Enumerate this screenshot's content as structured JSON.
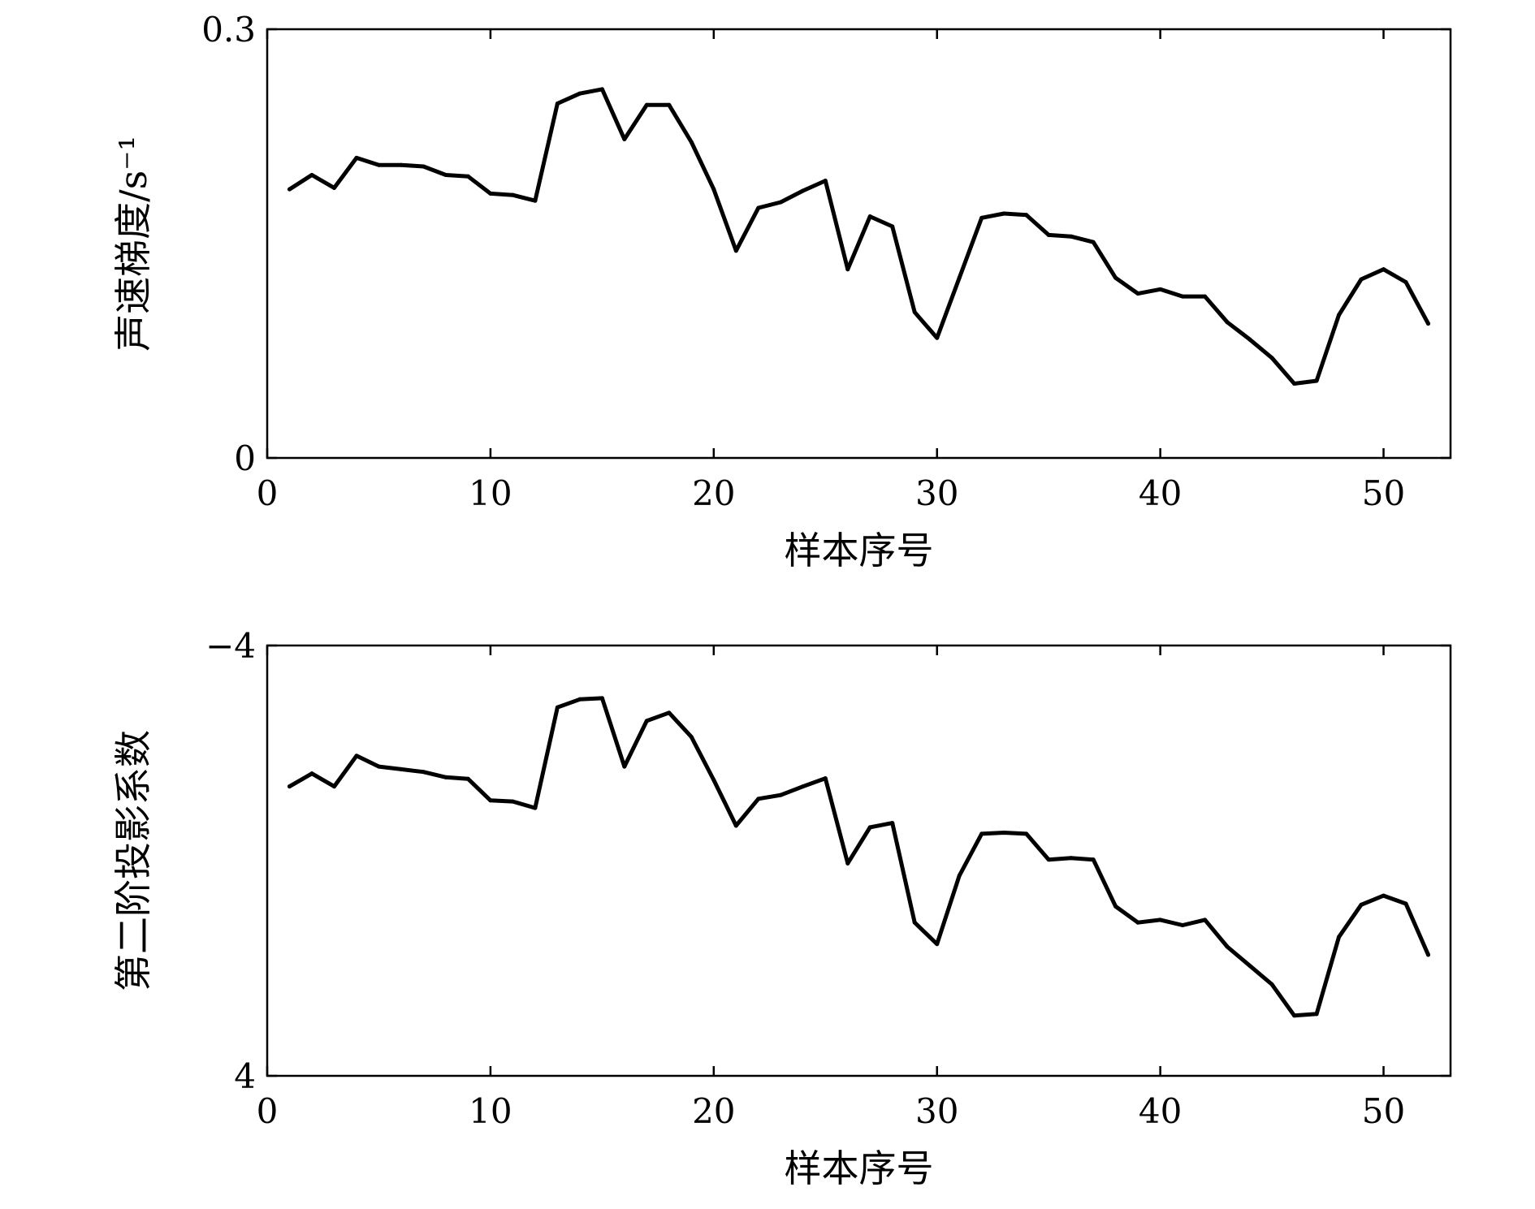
{
  "chart_data": [
    {
      "type": "line",
      "title": "",
      "xlabel": "样本序号",
      "ylabel": "声速梯度/s⁻¹",
      "xlim": [
        0,
        53
      ],
      "ylim": [
        0,
        0.3
      ],
      "y_inverted": false,
      "xticks": [
        0,
        10,
        20,
        30,
        40,
        50
      ],
      "yticks": [
        0,
        0.3
      ],
      "ytick_labels": [
        "0",
        "0.3"
      ],
      "grid": false,
      "series": [
        {
          "color": "#000000",
          "x": [
            1,
            2,
            3,
            4,
            5,
            6,
            7,
            8,
            9,
            10,
            11,
            12,
            13,
            14,
            15,
            16,
            17,
            18,
            19,
            20,
            21,
            22,
            23,
            24,
            25,
            26,
            27,
            28,
            29,
            30,
            31,
            32,
            33,
            34,
            35,
            36,
            37,
            38,
            39,
            40,
            41,
            42,
            43,
            44,
            45,
            46,
            47,
            48,
            49,
            50,
            51,
            52
          ],
          "values": [
            0.188,
            0.198,
            0.189,
            0.21,
            0.205,
            0.205,
            0.204,
            0.198,
            0.197,
            0.185,
            0.184,
            0.18,
            0.248,
            0.255,
            0.258,
            0.223,
            0.247,
            0.247,
            0.221,
            0.188,
            0.145,
            0.175,
            0.179,
            0.187,
            0.194,
            0.132,
            0.169,
            0.162,
            0.102,
            0.084,
            0.126,
            0.168,
            0.171,
            0.17,
            0.156,
            0.155,
            0.151,
            0.126,
            0.115,
            0.118,
            0.113,
            0.113,
            0.095,
            0.083,
            0.07,
            0.052,
            0.054,
            0.1,
            0.125,
            0.132,
            0.123,
            0.094
          ]
        }
      ]
    },
    {
      "type": "line",
      "title": "",
      "xlabel": "样本序号",
      "ylabel": "第二阶投影系数",
      "xlim": [
        0,
        53
      ],
      "ylim": [
        -4,
        4
      ],
      "y_inverted": true,
      "xticks": [
        0,
        10,
        20,
        30,
        40,
        50
      ],
      "yticks": [
        -4,
        4
      ],
      "ytick_labels": [
        "−4",
        "4"
      ],
      "grid": false,
      "series": [
        {
          "color": "#000000",
          "x": [
            1,
            2,
            3,
            4,
            5,
            6,
            7,
            8,
            9,
            10,
            11,
            12,
            13,
            14,
            15,
            16,
            17,
            18,
            19,
            20,
            21,
            22,
            23,
            24,
            25,
            26,
            27,
            28,
            29,
            30,
            31,
            32,
            33,
            34,
            35,
            36,
            37,
            38,
            39,
            40,
            41,
            42,
            43,
            44,
            45,
            46,
            47,
            48,
            49,
            50,
            51,
            52
          ],
          "values": [
            -1.38,
            -1.62,
            -1.38,
            -1.95,
            -1.75,
            -1.7,
            -1.65,
            -1.55,
            -1.52,
            -1.12,
            -1.1,
            -0.98,
            -2.85,
            -3.0,
            -3.02,
            -1.75,
            -2.6,
            -2.75,
            -2.3,
            -1.5,
            -0.65,
            -1.15,
            -1.22,
            -1.38,
            -1.53,
            0.05,
            -0.62,
            -0.7,
            1.15,
            1.55,
            0.28,
            -0.5,
            -0.52,
            -0.5,
            -0.02,
            -0.05,
            -0.02,
            0.85,
            1.15,
            1.1,
            1.2,
            1.1,
            1.6,
            1.95,
            2.3,
            2.88,
            2.85,
            1.42,
            0.82,
            0.65,
            0.8,
            1.75
          ]
        }
      ]
    }
  ]
}
